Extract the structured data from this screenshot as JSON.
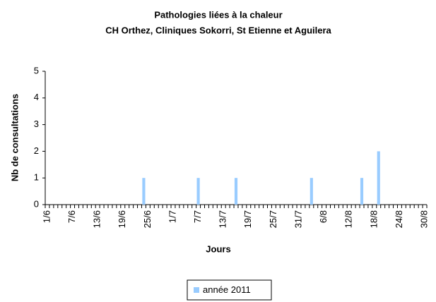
{
  "chart_data": {
    "type": "bar",
    "title": "Pathologies liées à la chaleur",
    "subtitle": "CH Orthez, Cliniques Sokorri, St Etienne et Aguilera",
    "xlabel": "Jours",
    "ylabel": "Nb de consultations",
    "categories": [
      "1/6",
      null,
      null,
      null,
      null,
      null,
      "7/6",
      null,
      null,
      null,
      null,
      null,
      "13/6",
      null,
      null,
      null,
      null,
      null,
      "19/6",
      null,
      null,
      null,
      null,
      null,
      "25/6",
      null,
      null,
      null,
      null,
      null,
      "1/7",
      null,
      null,
      null,
      null,
      null,
      "7/7",
      null,
      null,
      null,
      null,
      null,
      "13/7",
      null,
      null,
      null,
      null,
      null,
      "19/7",
      null,
      null,
      null,
      null,
      null,
      "25/7",
      null,
      null,
      null,
      null,
      null,
      "31/7",
      null,
      null,
      null,
      null,
      null,
      "6/8",
      null,
      null,
      null,
      null,
      null,
      "12/8",
      null,
      null,
      null,
      null,
      null,
      "18/8",
      null,
      null,
      null,
      null,
      null,
      "24/8",
      null,
      null,
      null,
      null,
      null,
      "30/8"
    ],
    "series": [
      {
        "name": "année 2011",
        "color": "#99ccff",
        "values": [
          0,
          0,
          0,
          0,
          0,
          0,
          0,
          0,
          0,
          0,
          0,
          0,
          0,
          0,
          0,
          0,
          0,
          0,
          0,
          0,
          0,
          0,
          0,
          1,
          0,
          0,
          0,
          0,
          0,
          0,
          0,
          0,
          0,
          0,
          0,
          0,
          1,
          0,
          0,
          0,
          0,
          0,
          0,
          0,
          0,
          1,
          0,
          0,
          0,
          0,
          0,
          0,
          0,
          0,
          0,
          0,
          0,
          0,
          0,
          0,
          0,
          0,
          0,
          1,
          0,
          0,
          0,
          0,
          0,
          0,
          0,
          0,
          0,
          0,
          0,
          1,
          0,
          0,
          0,
          2,
          0,
          0,
          0,
          0,
          0,
          0,
          0,
          0,
          0,
          0,
          0
        ]
      }
    ],
    "ylim": [
      0,
      5
    ],
    "yticks": [
      0,
      1,
      2,
      3,
      4,
      5
    ],
    "grid": false,
    "legend": "bottom"
  }
}
